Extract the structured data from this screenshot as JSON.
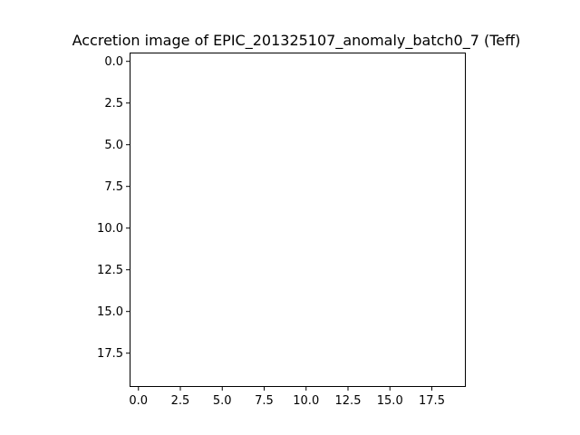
{
  "chart_data": {
    "type": "heatmap",
    "title": "Accretion image of EPIC_201325107_anomaly_batch0_7 (Teff)",
    "xlabel": "",
    "ylabel": "",
    "xlim": [
      -0.5,
      19.5
    ],
    "ylim": [
      19.5,
      -0.5
    ],
    "y_axis_inverted": true,
    "x_ticks": [
      0.0,
      2.5,
      5.0,
      7.5,
      10.0,
      12.5,
      15.0,
      17.5
    ],
    "x_tick_labels": [
      "0.0",
      "2.5",
      "5.0",
      "7.5",
      "10.0",
      "12.5",
      "15.0",
      "17.5"
    ],
    "y_ticks": [
      0.0,
      2.5,
      5.0,
      7.5,
      10.0,
      12.5,
      15.0,
      17.5
    ],
    "y_tick_labels": [
      "0.0",
      "2.5",
      "5.0",
      "7.5",
      "10.0",
      "12.5",
      "15.0",
      "17.5"
    ],
    "grid": false,
    "image_empty": true,
    "colors": {
      "background": "#ffffff",
      "axes": "#000000"
    }
  }
}
